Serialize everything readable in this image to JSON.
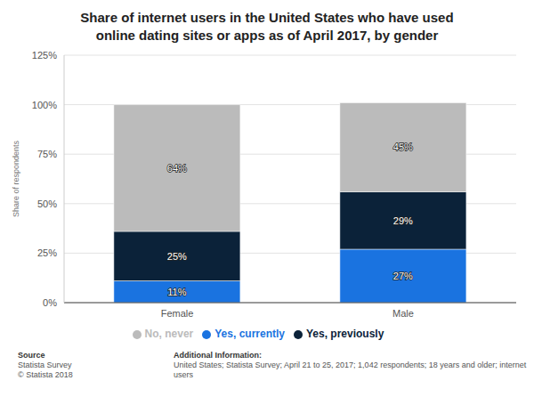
{
  "chart_data": {
    "type": "bar",
    "title": "Share of internet users in the United States who have used online dating sites or apps as of April 2017, by gender",
    "y_label": "Share of respondents",
    "categories": [
      "Female",
      "Male"
    ],
    "series": [
      {
        "name": "Yes, currently",
        "color": "#1a73e0",
        "values": [
          11,
          27
        ],
        "value_labels": [
          "11%",
          "27%"
        ]
      },
      {
        "name": "Yes, previously",
        "color": "#0b2239",
        "values": [
          25,
          29
        ],
        "value_labels": [
          "25%",
          "29%"
        ]
      },
      {
        "name": "No, never",
        "color": "#bbbbbb",
        "values": [
          64,
          45
        ],
        "value_labels": [
          "64%",
          "45%"
        ]
      }
    ],
    "ylim": [
      0,
      125
    ],
    "yticks": [
      {
        "value": 0,
        "label": "0%"
      },
      {
        "value": 25,
        "label": "25%"
      },
      {
        "value": 50,
        "label": "50%"
      },
      {
        "value": 75,
        "label": "75%"
      },
      {
        "value": 100,
        "label": "100%"
      },
      {
        "value": 125,
        "label": "125%"
      }
    ],
    "stacked": true,
    "data_labels": true,
    "grid": true,
    "legend": "bottom",
    "notes": {
      "source_title": "Source",
      "source_lines": [
        "Statista Survey",
        "© Statista 2018"
      ],
      "info_title": "Additional Information:",
      "info_text": "United States; Statista Survey; April 21 to 25, 2017; 1,042 respondents; 18 years and older; internet users"
    }
  }
}
